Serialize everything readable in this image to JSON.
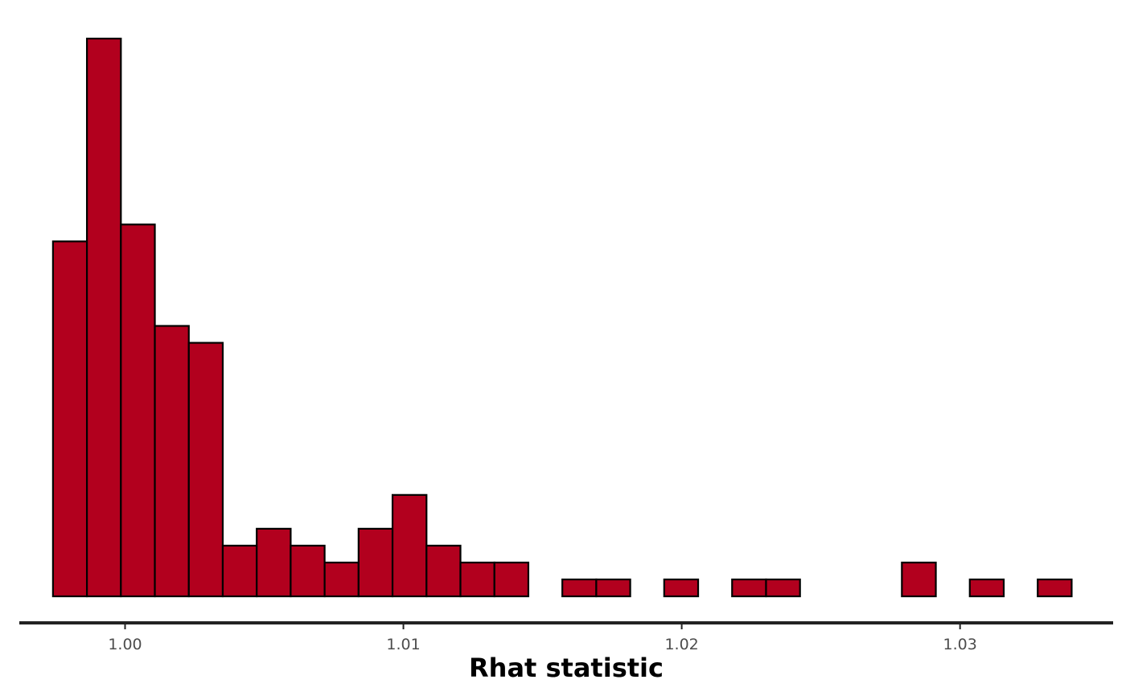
{
  "chart_data": {
    "type": "bar",
    "subtype": "histogram",
    "xlabel": "Rhat statistic",
    "ylabel": "",
    "title": "",
    "grid": false,
    "legend": "none",
    "colors": {
      "bar_fill": "#b2001e",
      "bar_stroke": "#000000",
      "axis_line": "#222222",
      "tick_text": "#4d4d4d",
      "background": "#ffffff"
    },
    "bin_width": 0.00122,
    "first_bin_start": 0.99741,
    "xlim": [
      0.9962,
      1.0355
    ],
    "ylim": [
      0,
      33.5
    ],
    "x_ticks": [
      {
        "value": 1.0,
        "label": "1.00"
      },
      {
        "value": 1.01,
        "label": "1.01"
      },
      {
        "value": 1.02,
        "label": "1.02"
      },
      {
        "value": 1.03,
        "label": "1.03"
      }
    ],
    "counts": [
      21,
      33,
      22,
      16,
      15,
      3,
      4,
      3,
      2,
      4,
      6,
      3,
      2,
      2,
      0,
      1,
      1,
      0,
      1,
      0,
      1,
      1,
      0,
      0,
      0,
      2,
      0,
      1,
      0,
      1
    ]
  }
}
